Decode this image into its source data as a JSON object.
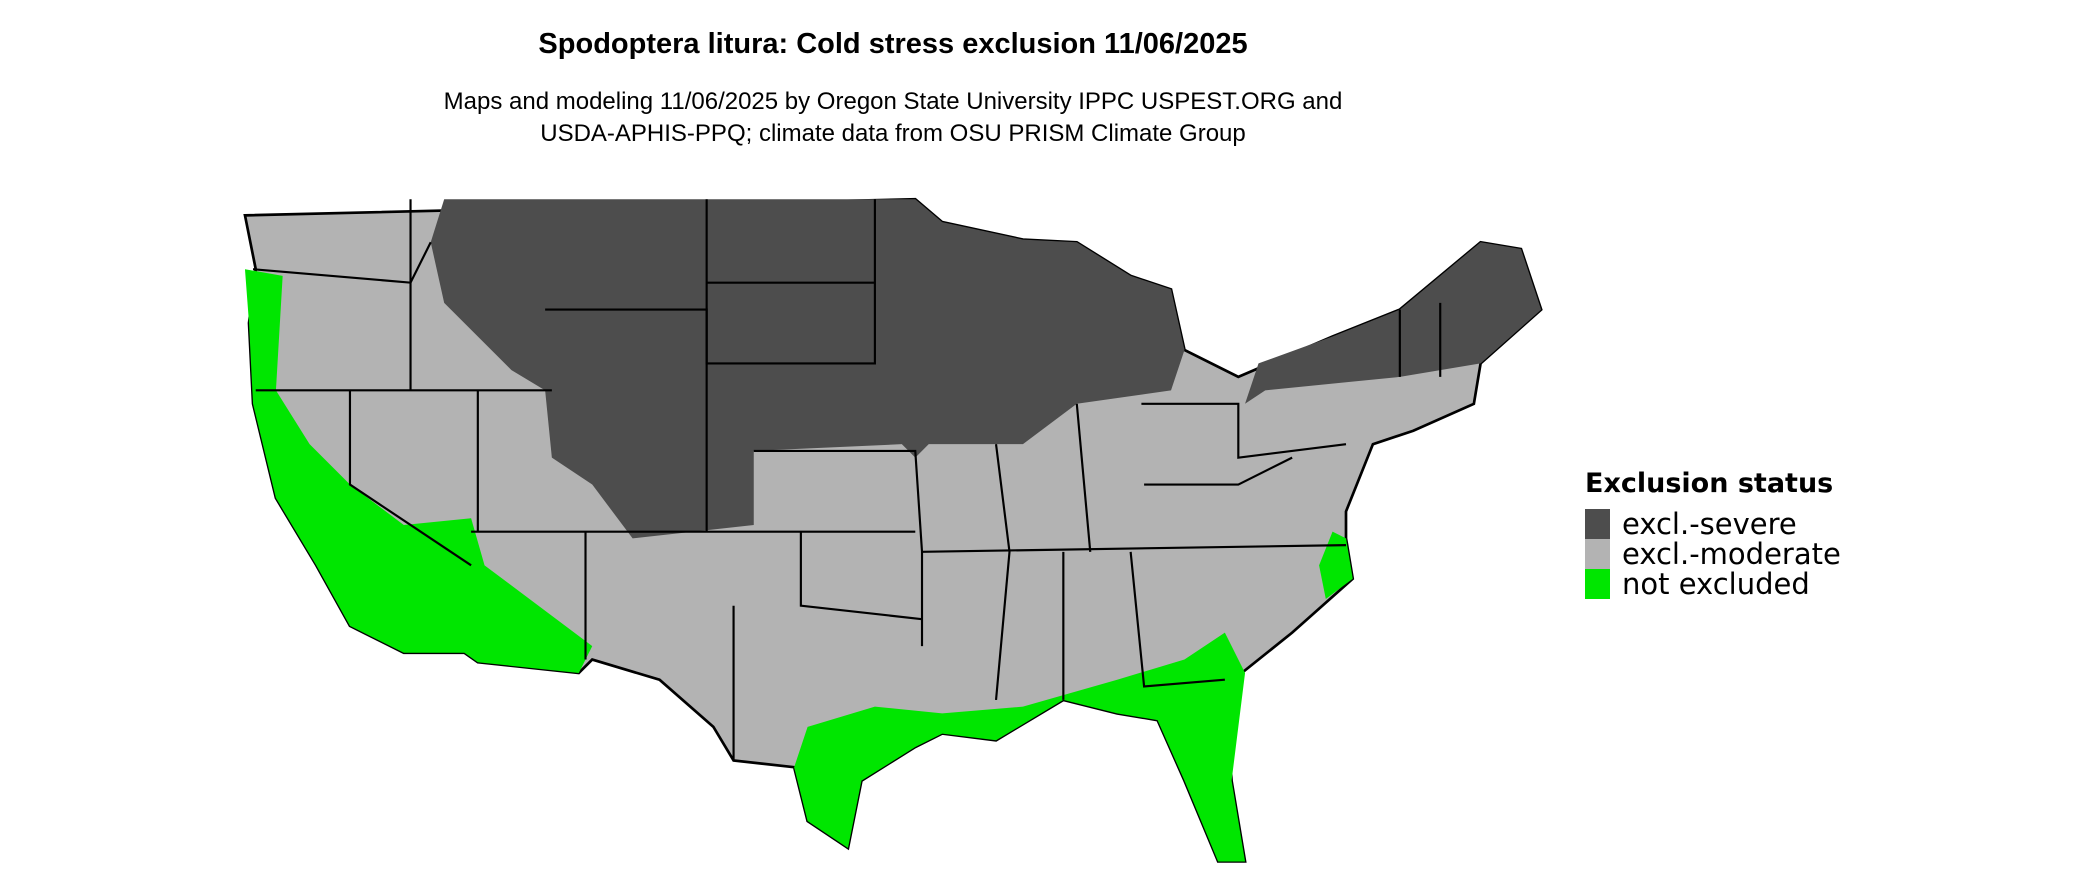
{
  "title": "Spodoptera litura: Cold stress exclusion 11/06/2025",
  "subtitle_line1": "Maps and modeling 11/06/2025 by Oregon State University IPPC USPEST.ORG and",
  "subtitle_line2": "USDA-APHIS-PPQ; climate data from OSU PRISM Climate Group",
  "legend": {
    "title": "Exclusion status",
    "items": [
      {
        "label": "excl.-severe",
        "color": "#4d4d4d"
      },
      {
        "label": "excl.-moderate",
        "color": "#b3b3b3"
      },
      {
        "label": "not excluded",
        "color": "#00e600"
      }
    ]
  }
}
